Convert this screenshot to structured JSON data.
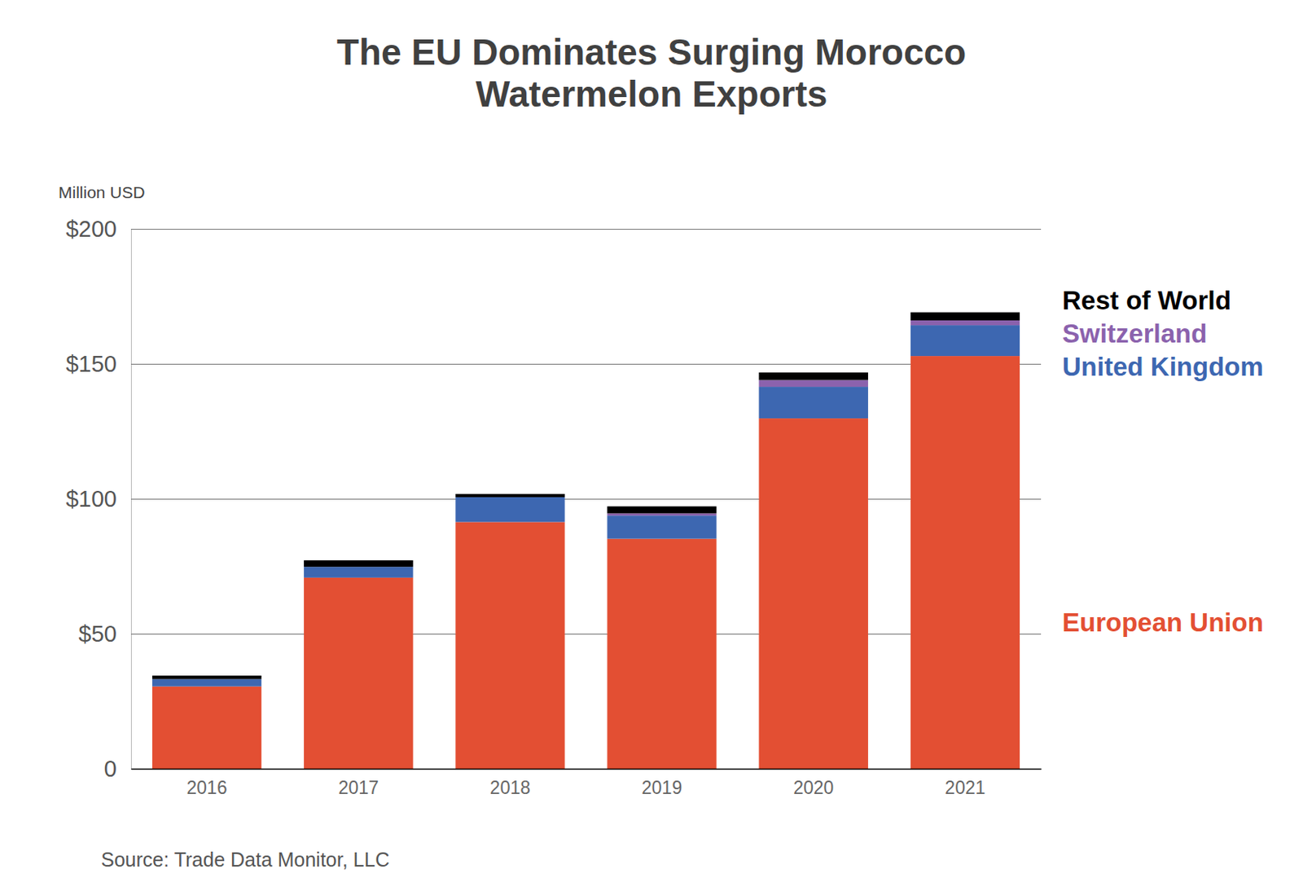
{
  "chart_data": {
    "type": "bar",
    "stacked": true,
    "title": "The EU Dominates Surging Morocco\nWatermelon Exports",
    "y_label": "Million USD",
    "source": "Source: Trade Data Monitor, LLC",
    "categories": [
      "2016",
      "2017",
      "2018",
      "2019",
      "2020",
      "2021"
    ],
    "series": [
      {
        "name": "European Union",
        "color": "#e34f33",
        "values": [
          30.5,
          70.8,
          91.4,
          85.2,
          129.8,
          152.9
        ]
      },
      {
        "name": "United Kingdom",
        "color": "#3d67b1",
        "values": [
          2.7,
          4.0,
          9.2,
          8.6,
          11.7,
          11.4
        ]
      },
      {
        "name": "Switzerland",
        "color": "#8b62ad",
        "values": [
          0,
          0,
          0,
          0.8,
          2.5,
          1.8
        ]
      },
      {
        "name": "Rest of World",
        "color": "#000000",
        "values": [
          1.3,
          2.4,
          1.2,
          2.6,
          2.8,
          3.0
        ]
      }
    ],
    "ylim": [
      0,
      200
    ],
    "yticks": [
      0,
      {
        "value": 50,
        "label": "$50"
      },
      {
        "value": 100,
        "label": "$100"
      },
      {
        "value": 150,
        "label": "$150"
      },
      {
        "value": 200,
        "label": "$200"
      }
    ],
    "grid": true
  }
}
